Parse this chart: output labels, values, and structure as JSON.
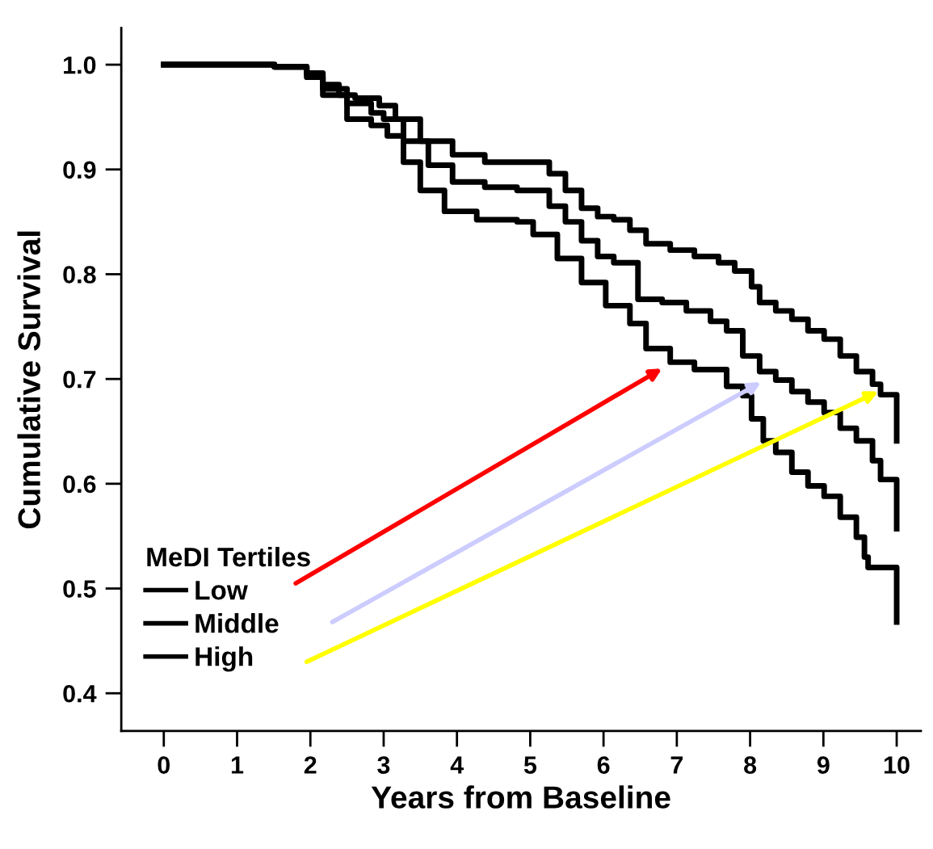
{
  "chart_data": {
    "type": "step",
    "xlabel": "Years from Baseline",
    "ylabel": "Cumulative Survival",
    "legend_title": "MeDI Tertiles",
    "legend": "bottom left",
    "grid": false,
    "xlim": [
      -0.58,
      10.33
    ],
    "ylim": [
      0.364,
      1.035
    ],
    "xticks": [
      0,
      1,
      2,
      3,
      4,
      5,
      6,
      7,
      8,
      9,
      10
    ],
    "yticks": [
      {
        "value": 0.4,
        "label": "0.4"
      },
      {
        "value": 0.5,
        "label": "0.5"
      },
      {
        "value": 0.6,
        "label": "0.6"
      },
      {
        "value": 0.7,
        "label": "0.7"
      },
      {
        "value": 0.8,
        "label": "0.8"
      },
      {
        "value": 0.9,
        "label": "0.9"
      },
      {
        "value": 1.0,
        "label": "1.0"
      }
    ],
    "series": [
      {
        "name": "Low",
        "color": "#000000",
        "x": [
          0,
          1.51,
          1.95,
          2.17,
          2.5,
          2.83,
          3.05,
          3.27,
          3.5,
          3.83,
          4.27,
          4.82,
          5.04,
          5.37,
          5.7,
          6.03,
          6.36,
          6.58,
          6.91,
          7.24,
          7.68,
          7.9,
          8.02,
          8.18,
          8.35,
          8.57,
          8.79,
          9.01,
          9.23,
          9.45,
          9.56,
          9.61,
          10.0,
          10.0
        ],
        "values": [
          1.0,
          0.998,
          0.988,
          0.971,
          0.948,
          0.942,
          0.932,
          0.907,
          0.88,
          0.86,
          0.852,
          0.85,
          0.838,
          0.815,
          0.792,
          0.77,
          0.753,
          0.729,
          0.716,
          0.709,
          0.693,
          0.684,
          0.662,
          0.641,
          0.63,
          0.611,
          0.598,
          0.588,
          0.568,
          0.549,
          0.53,
          0.52,
          0.52,
          0.468
        ]
      },
      {
        "name": "Middle",
        "color": "#000000",
        "x": [
          0,
          1.51,
          1.95,
          2.17,
          2.5,
          2.83,
          3.0,
          3.27,
          3.61,
          3.94,
          4.38,
          4.82,
          5.26,
          5.48,
          5.7,
          5.92,
          6.14,
          6.47,
          6.8,
          7.13,
          7.46,
          7.68,
          7.9,
          8.13,
          8.35,
          8.57,
          8.79,
          9.01,
          9.23,
          9.45,
          9.67,
          9.78,
          10.0,
          10.0
        ],
        "values": [
          1.0,
          0.998,
          0.991,
          0.977,
          0.963,
          0.954,
          0.948,
          0.927,
          0.904,
          0.888,
          0.883,
          0.88,
          0.865,
          0.85,
          0.832,
          0.817,
          0.811,
          0.776,
          0.773,
          0.765,
          0.755,
          0.746,
          0.722,
          0.707,
          0.699,
          0.688,
          0.678,
          0.668,
          0.653,
          0.641,
          0.622,
          0.604,
          0.604,
          0.557
        ]
      },
      {
        "name": "High",
        "color": "#000000",
        "x": [
          0,
          1.51,
          1.95,
          2.17,
          2.39,
          2.61,
          2.94,
          3.16,
          3.5,
          3.94,
          4.38,
          4.93,
          5.26,
          5.48,
          5.7,
          5.92,
          6.14,
          6.36,
          6.58,
          6.91,
          7.24,
          7.57,
          7.79,
          8.02,
          8.13,
          8.35,
          8.57,
          8.79,
          9.01,
          9.23,
          9.45,
          9.67,
          9.78,
          10.0,
          10.0
        ],
        "values": [
          1.0,
          0.998,
          0.992,
          0.981,
          0.971,
          0.968,
          0.961,
          0.948,
          0.927,
          0.914,
          0.907,
          0.907,
          0.896,
          0.88,
          0.863,
          0.855,
          0.852,
          0.842,
          0.829,
          0.823,
          0.817,
          0.811,
          0.803,
          0.788,
          0.773,
          0.765,
          0.757,
          0.746,
          0.738,
          0.722,
          0.707,
          0.695,
          0.685,
          0.685,
          0.641
        ]
      }
    ]
  }
}
